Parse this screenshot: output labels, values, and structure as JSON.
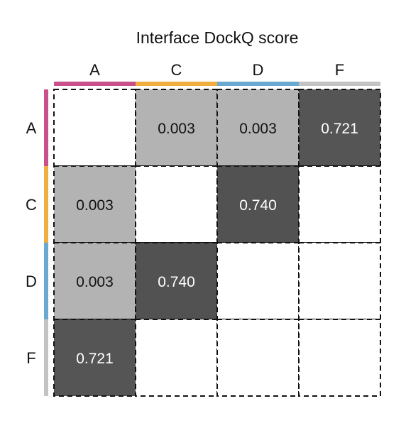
{
  "chart_data": {
    "type": "heatmap",
    "title": "Interface DockQ score",
    "col_labels": [
      "A",
      "C",
      "D",
      "F"
    ],
    "row_labels": [
      "A",
      "C",
      "D",
      "F"
    ],
    "chain_colors": {
      "A": "#c9508a",
      "C": "#f0ae3f",
      "D": "#6aaad2",
      "F": "#c3c3c3"
    },
    "cells": [
      [
        null,
        "0.003",
        "0.003",
        "0.721"
      ],
      [
        "0.003",
        null,
        "0.740",
        null
      ],
      [
        "0.003",
        "0.740",
        null,
        null
      ],
      [
        "0.721",
        null,
        null,
        null
      ]
    ],
    "value_scale": {
      "low": 0.003,
      "high": 0.74
    },
    "colors": {
      "low": "#b3b3b3",
      "high": "#525252",
      "empty": "#ffffff",
      "border": "#111111"
    },
    "grid": "dashed"
  }
}
